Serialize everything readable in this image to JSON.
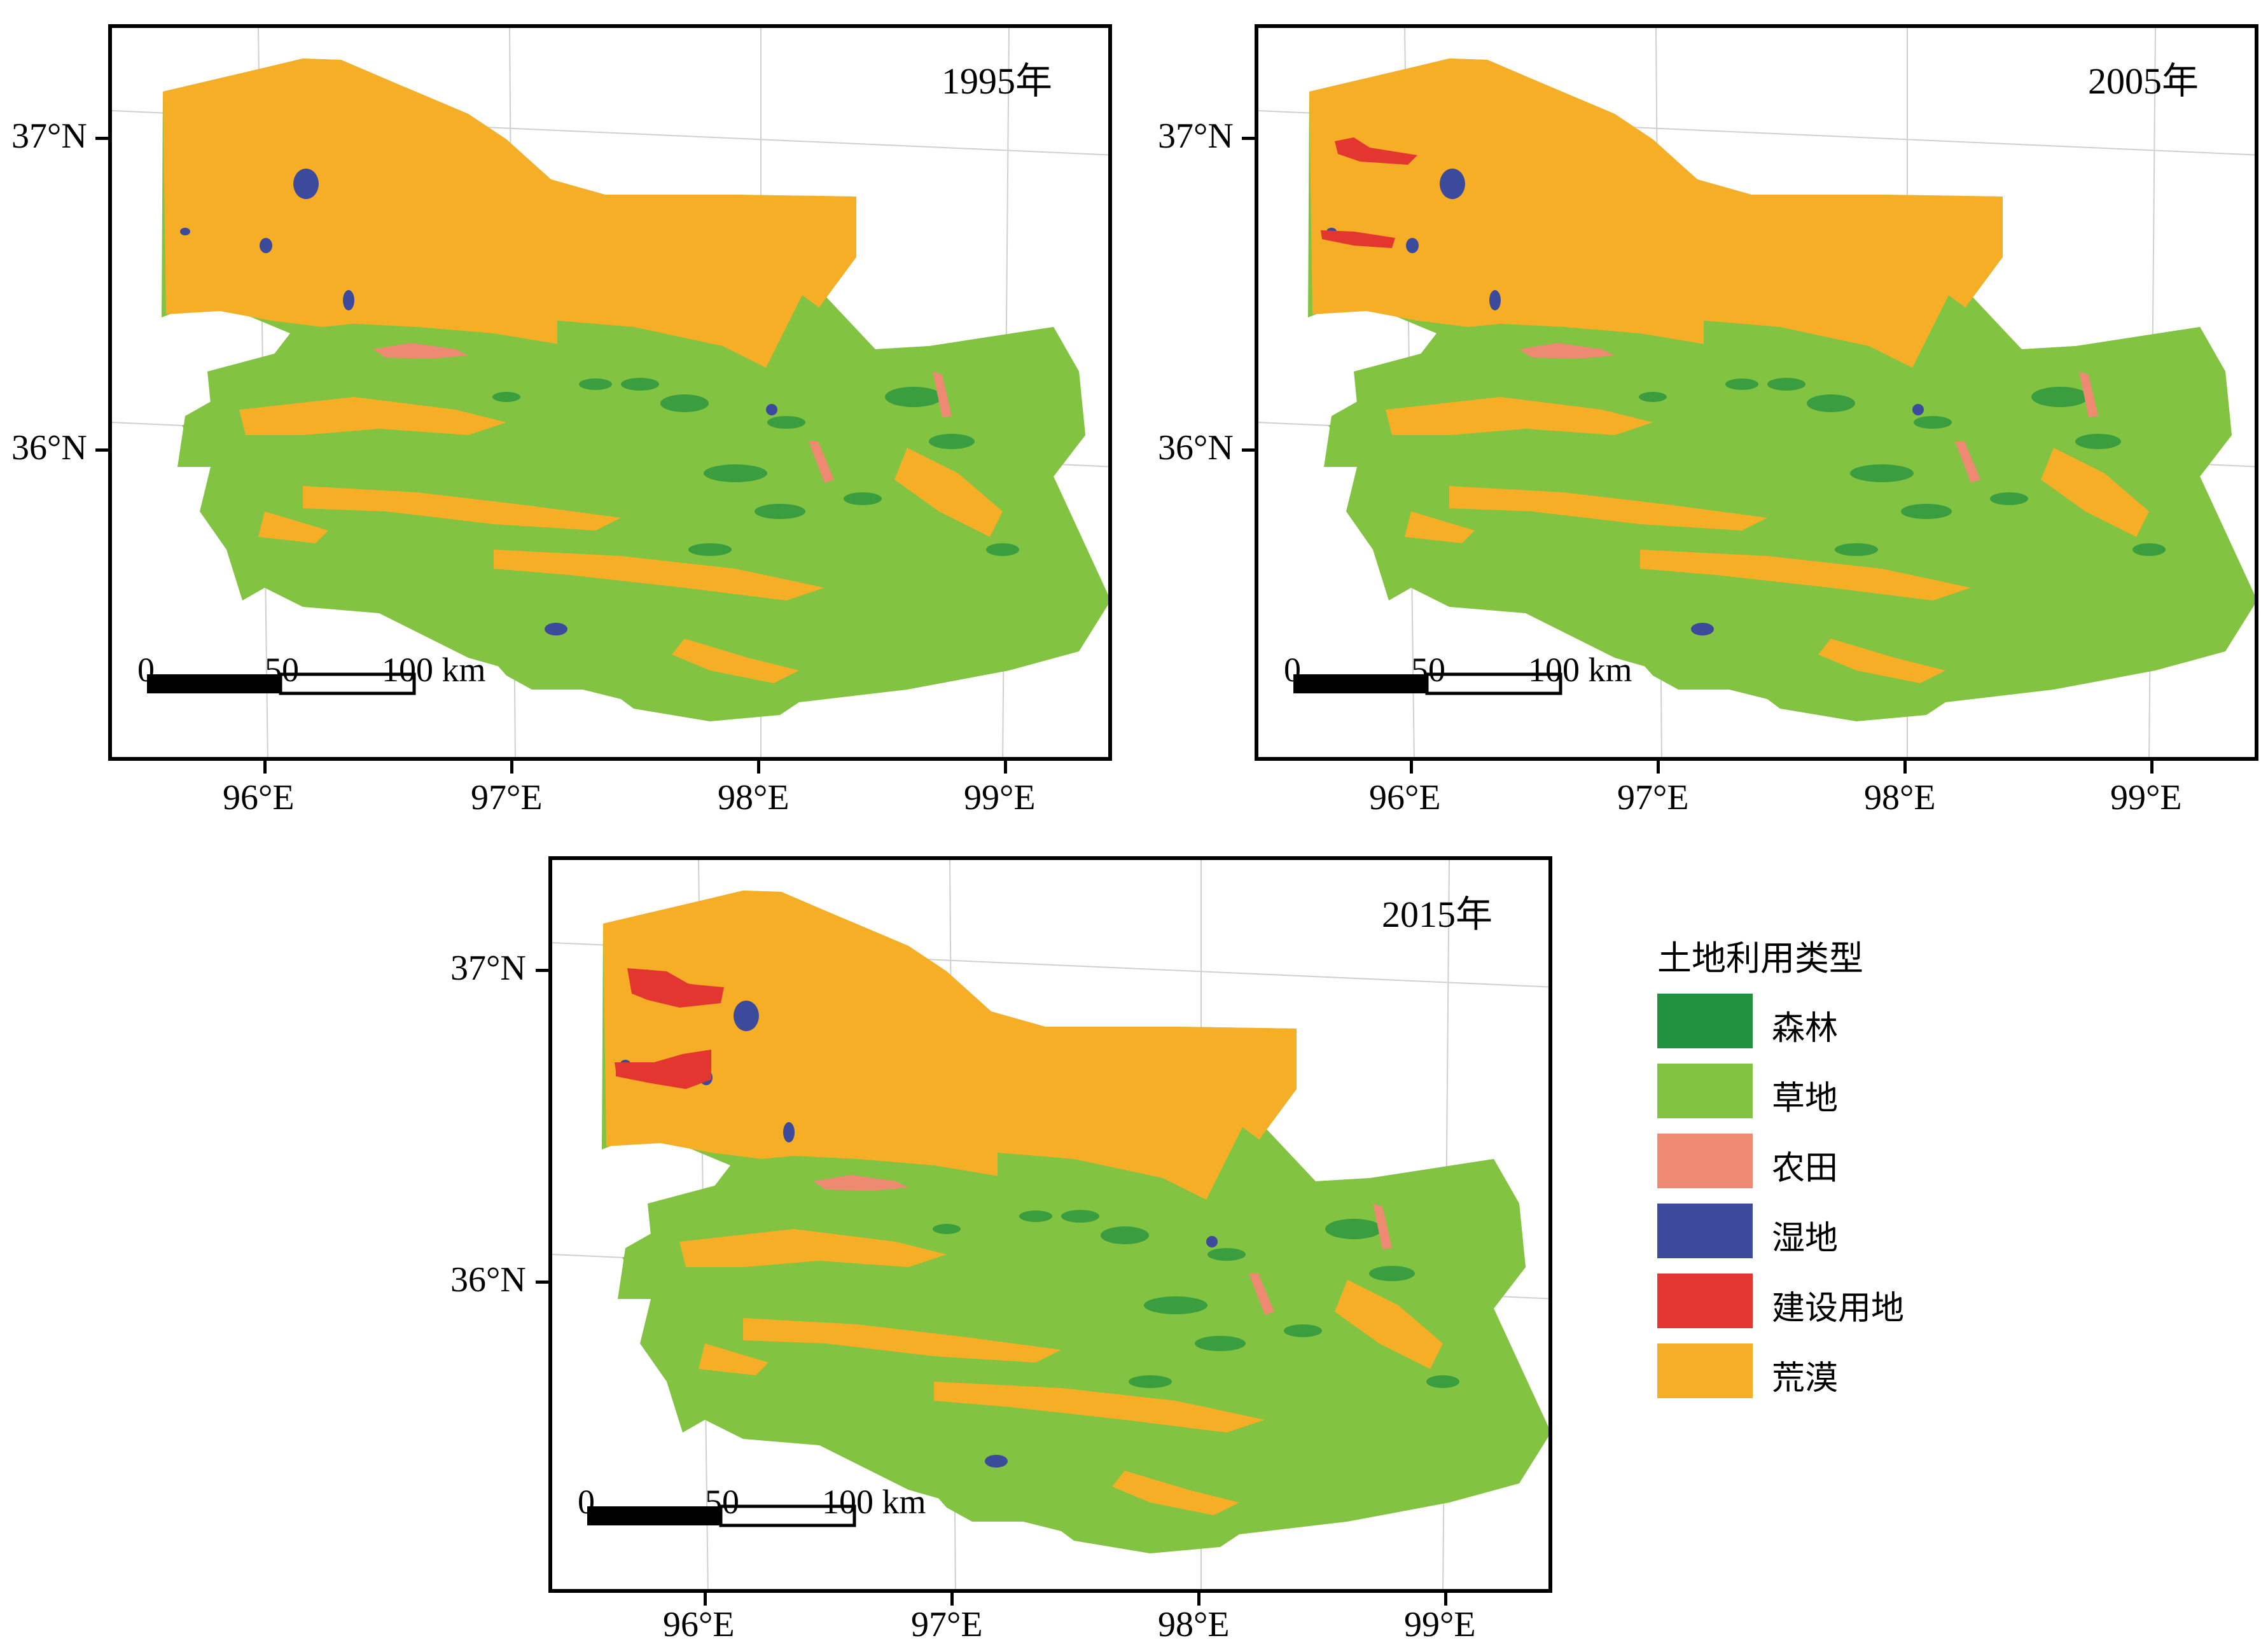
{
  "maps": [
    {
      "year_label": "1995年",
      "builtup_level": 0
    },
    {
      "year_label": "2005年",
      "builtup_level": 1
    },
    {
      "year_label": "2015年",
      "builtup_level": 2
    }
  ],
  "lat_labels": [
    "37°N",
    "36°N"
  ],
  "lon_labels": [
    "96°E",
    "97°E",
    "98°E",
    "99°E"
  ],
  "scale_bar": {
    "zero": "0",
    "mid": "50",
    "end": "100 km"
  },
  "legend": {
    "title": "土地利用类型",
    "items": [
      {
        "label": "森林",
        "color": "#22913f"
      },
      {
        "label": "草地",
        "color": "#82c341"
      },
      {
        "label": "农田",
        "color": "#ef8a72"
      },
      {
        "label": "湿地",
        "color": "#3b4a9a"
      },
      {
        "label": "建设用地",
        "color": "#e33630"
      },
      {
        "label": "荒漠",
        "color": "#f7ae27"
      }
    ]
  }
}
